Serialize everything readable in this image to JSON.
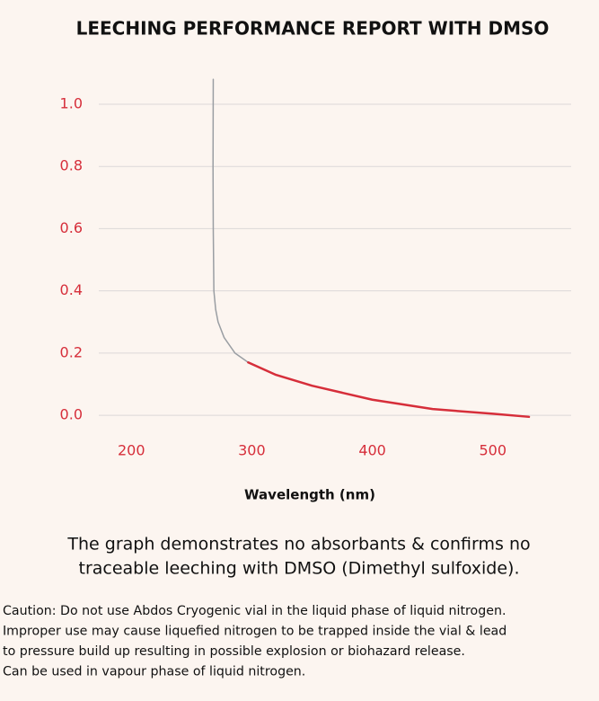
{
  "chart_data": {
    "type": "line",
    "title": "LEECHING PERFORMANCE REPORT WITH DMSO",
    "x_label": "Wavelength (nm)",
    "series": [
      {
        "color": "#9a9ea3",
        "x": [
          268,
          267.8,
          268,
          268.5,
          270,
          272,
          277,
          286,
          297
        ],
        "values": [
          1.08,
          0.8,
          0.6,
          0.4,
          0.34,
          0.3,
          0.25,
          0.2,
          0.17
        ]
      },
      {
        "color": "#d62e3a",
        "x": [
          297,
          320,
          350,
          400,
          450,
          500,
          530
        ],
        "values": [
          0.17,
          0.13,
          0.095,
          0.05,
          0.02,
          0.005,
          -0.005
        ]
      }
    ],
    "xlim": [
      173,
      565
    ],
    "xticks": [
      200,
      300,
      400,
      500
    ],
    "ylim": [
      -0.02,
      1.08
    ],
    "yticks": [
      {
        "value": 0,
        "label": "0.0"
      },
      0.2,
      0.4,
      0.6,
      0.8,
      {
        "value": 1,
        "label": "1.0"
      }
    ],
    "grid": true,
    "caption": [
      "The graph demonstrates no absorbants & confirms no",
      "traceable leeching with DMSO (Dimethyl sulfoxide)."
    ],
    "caution": [
      "Caution: Do not use Abdos Cryogenic vial in the liquid phase of liquid nitrogen.",
      "Improper use may cause liquefied nitrogen to be trapped inside the vial & lead",
      "to pressure build up resulting in possible explosion or biohazard release.",
      "Can be used in vapour phase of liquid nitrogen."
    ]
  }
}
